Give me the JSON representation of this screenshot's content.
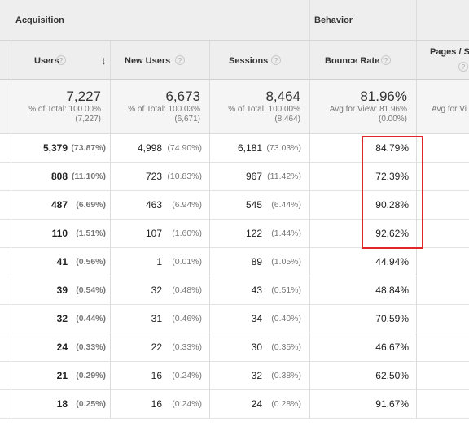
{
  "groups": {
    "acquisition": "Acquisition",
    "behavior": "Behavior"
  },
  "columns": {
    "users": "Users",
    "new_users": "New Users",
    "sessions": "Sessions",
    "bounce_rate": "Bounce Rate",
    "pages": "Pages / S"
  },
  "help_glyph": "?",
  "sort_glyph": "↓",
  "totals": {
    "users": {
      "value": "7,227",
      "line1": "% of Total: 100.00%",
      "line2": "(7,227)"
    },
    "new_users": {
      "value": "6,673",
      "line1": "% of Total: 100.03%",
      "line2": "(6,671)"
    },
    "sessions": {
      "value": "8,464",
      "line1": "% of Total: 100.00%",
      "line2": "(8,464)"
    },
    "bounce_rate": {
      "value": "81.96%",
      "line1": "Avg for View: 81.96%",
      "line2": "(0.00%)"
    },
    "pages": {
      "line1": "Avg for Vi"
    }
  },
  "rows": [
    {
      "users": "5,379",
      "users_pct": "(73.87%)",
      "new_users": "4,998",
      "new_users_pct": "(74.90%)",
      "sessions": "6,181",
      "sessions_pct": "(73.03%)",
      "bounce": "84.79%"
    },
    {
      "users": "808",
      "users_pct": "(11.10%)",
      "new_users": "723",
      "new_users_pct": "(10.83%)",
      "sessions": "967",
      "sessions_pct": "(11.42%)",
      "bounce": "72.39%"
    },
    {
      "users": "487",
      "users_pct": "(6.69%)",
      "new_users": "463",
      "new_users_pct": "(6.94%)",
      "sessions": "545",
      "sessions_pct": "(6.44%)",
      "bounce": "90.28%"
    },
    {
      "users": "110",
      "users_pct": "(1.51%)",
      "new_users": "107",
      "new_users_pct": "(1.60%)",
      "sessions": "122",
      "sessions_pct": "(1.44%)",
      "bounce": "92.62%"
    },
    {
      "users": "41",
      "users_pct": "(0.56%)",
      "new_users": "1",
      "new_users_pct": "(0.01%)",
      "sessions": "89",
      "sessions_pct": "(1.05%)",
      "bounce": "44.94%"
    },
    {
      "users": "39",
      "users_pct": "(0.54%)",
      "new_users": "32",
      "new_users_pct": "(0.48%)",
      "sessions": "43",
      "sessions_pct": "(0.51%)",
      "bounce": "48.84%"
    },
    {
      "users": "32",
      "users_pct": "(0.44%)",
      "new_users": "31",
      "new_users_pct": "(0.46%)",
      "sessions": "34",
      "sessions_pct": "(0.40%)",
      "bounce": "70.59%"
    },
    {
      "users": "24",
      "users_pct": "(0.33%)",
      "new_users": "22",
      "new_users_pct": "(0.33%)",
      "sessions": "30",
      "sessions_pct": "(0.35%)",
      "bounce": "46.67%"
    },
    {
      "users": "21",
      "users_pct": "(0.29%)",
      "new_users": "16",
      "new_users_pct": "(0.24%)",
      "sessions": "32",
      "sessions_pct": "(0.38%)",
      "bounce": "62.50%"
    },
    {
      "users": "18",
      "users_pct": "(0.25%)",
      "new_users": "16",
      "new_users_pct": "(0.24%)",
      "sessions": "24",
      "sessions_pct": "(0.28%)",
      "bounce": "91.67%"
    }
  ],
  "highlight_color": "#e0262a"
}
